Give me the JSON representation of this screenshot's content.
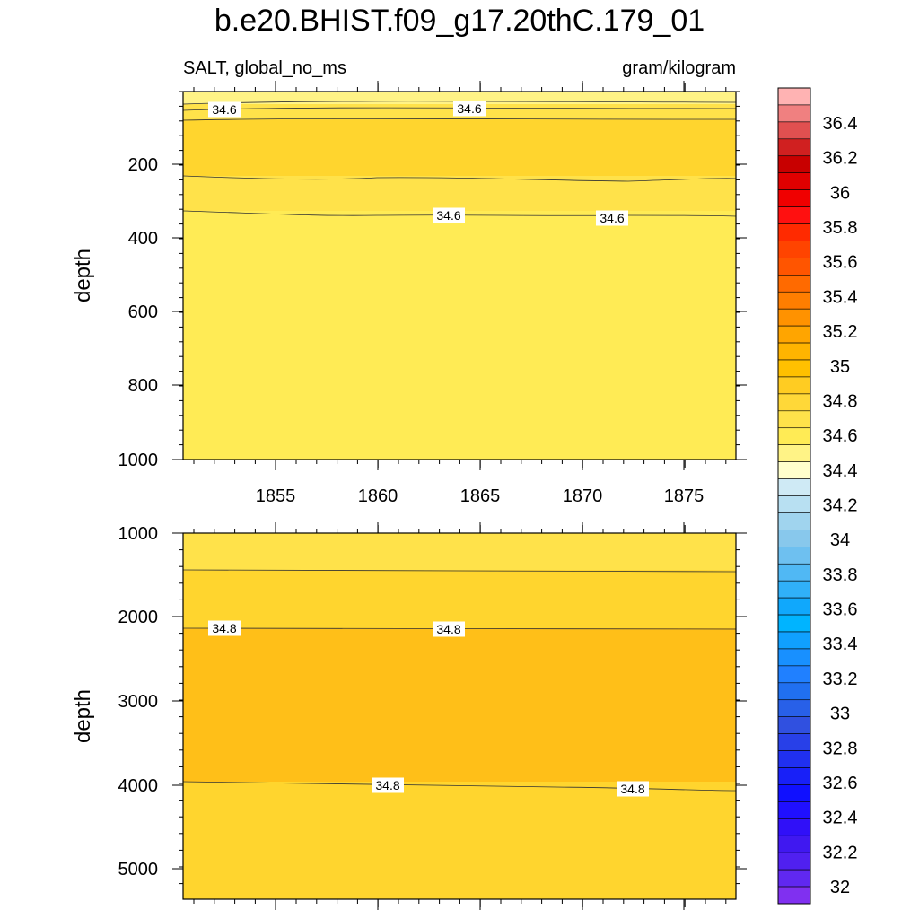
{
  "chart_data": {
    "type": "heatmap",
    "title": "b.e20.BHIST.f09_g17.20thC.179_01",
    "left_subtitle": "SALT, global_no_ms",
    "right_subtitle": "gram/kilogram",
    "ylabel": "depth",
    "x_ticks": [
      "1855",
      "1860",
      "1865",
      "1870",
      "1875"
    ],
    "panels": [
      {
        "name": "upper",
        "ylim": [
          0,
          1000
        ],
        "y_ticks": [
          "200",
          "400",
          "600",
          "800",
          "1000"
        ],
        "bands": [
          {
            "color": "#fff386"
          },
          {
            "color": "#ffe24a"
          },
          {
            "color": "#ffd52e"
          },
          {
            "color": "#ffe24a"
          },
          {
            "color": "#ffeb55"
          }
        ],
        "labels": [
          "34.6",
          "34.6",
          "34.6",
          "34.6"
        ]
      },
      {
        "name": "lower",
        "ylim": [
          1000,
          5300
        ],
        "y_ticks": [
          "1000",
          "2000",
          "3000",
          "4000",
          "5000"
        ],
        "bands": [
          {
            "color": "#ffe24a"
          },
          {
            "color": "#ffd52e"
          },
          {
            "color": "#ffbf18"
          },
          {
            "color": "#ffd52e"
          }
        ],
        "labels": [
          "34.8",
          "34.8",
          "34.8",
          "34.8"
        ]
      }
    ],
    "colorbar": {
      "levels": [
        "36.4",
        "36.2",
        "36",
        "35.8",
        "35.6",
        "35.4",
        "35.2",
        "35",
        "34.8",
        "34.6",
        "34.4",
        "34.2",
        "34",
        "33.8",
        "33.6",
        "33.4",
        "33.2",
        "33",
        "32.8",
        "32.6",
        "32.4",
        "32.2",
        "32"
      ],
      "colors": [
        "#ffb3b3",
        "#f08080",
        "#e05050",
        "#d02020",
        "#c80000",
        "#e00000",
        "#f00000",
        "#ff1010",
        "#ff2a00",
        "#ff4400",
        "#ff5500",
        "#ff6a00",
        "#ff7e00",
        "#ff9200",
        "#ffa500",
        "#ffb400",
        "#ffc000",
        "#ffcc22",
        "#ffd838",
        "#ffe24a",
        "#ffeb55",
        "#fff386",
        "#ffffcc",
        "#cfeaf5",
        "#b8e0f2",
        "#a0d4ee",
        "#88c8ec",
        "#6ec0f0",
        "#50b8f4",
        "#30b0f8",
        "#10a8fc",
        "#00b4ff",
        "#10a0ff",
        "#1890ff",
        "#2080ff",
        "#2070f0",
        "#2860e8",
        "#3050e0",
        "#2840e8",
        "#2030f0",
        "#1820f8",
        "#1010ff",
        "#2010ff",
        "#3010f8",
        "#4018f0",
        "#5020f0",
        "#6028f0",
        "#8030f0"
      ]
    }
  }
}
